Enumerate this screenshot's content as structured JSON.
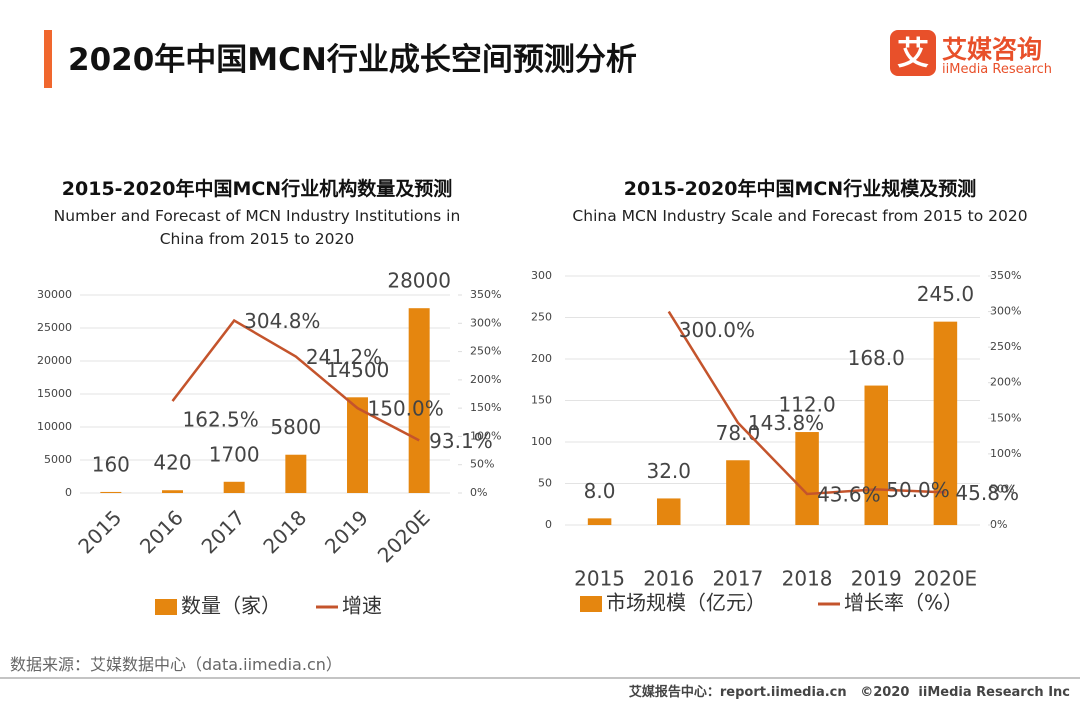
{
  "header": {
    "title": "2020年中国MCN行业成长空间预测分析",
    "logo_mark": "艾",
    "logo_cn": "艾媒咨询",
    "logo_en": "iiMedia Research"
  },
  "chart_data": [
    {
      "type": "bar",
      "title": "2015-2020年中国MCN行业机构数量及预测",
      "subtitle": "Number and Forecast of MCN Industry Institutions in China from 2015 to 2020",
      "categories": [
        "2015",
        "2016",
        "2017",
        "2018",
        "2019",
        "2020E"
      ],
      "series": [
        {
          "name": "数量（家）",
          "type": "bar",
          "color": "#e5860f",
          "values": [
            160,
            420,
            1700,
            5800,
            14500,
            28000
          ]
        },
        {
          "name": "增速",
          "type": "line",
          "axis": "y2",
          "color": "#c4542c",
          "values": [
            null,
            162.5,
            304.8,
            241.2,
            150.0,
            93.1
          ],
          "value_labels": [
            null,
            "162.5%",
            "304.8%",
            "241.2%",
            "150.0%",
            "93.1%"
          ]
        }
      ],
      "ylim": [
        0,
        30000
      ],
      "yticks": [
        0,
        5000,
        10000,
        15000,
        20000,
        25000,
        30000
      ],
      "y2lim": [
        0,
        350
      ],
      "y2ticks": [
        {
          "value": 0,
          "label": "0%"
        },
        {
          "value": 50,
          "label": "50%"
        },
        {
          "value": 100,
          "label": "100%"
        },
        {
          "value": 150,
          "label": "150%"
        },
        {
          "value": 200,
          "label": "200%"
        },
        {
          "value": 250,
          "label": "250%"
        },
        {
          "value": 300,
          "label": "300%"
        },
        {
          "value": 350,
          "label": "350%"
        }
      ],
      "grid": true
    },
    {
      "type": "bar",
      "title": "2015-2020年中国MCN行业规模及预测",
      "subtitle": "China MCN Industry Scale and Forecast from 2015 to 2020",
      "categories": [
        "2015",
        "2016",
        "2017",
        "2018",
        "2019",
        "2020E"
      ],
      "series": [
        {
          "name": "市场规模（亿元）",
          "type": "bar",
          "color": "#e5860f",
          "values": [
            8.0,
            32.0,
            78.0,
            112.0,
            168.0,
            245.0
          ],
          "value_labels": [
            "8.0",
            "32.0",
            "78.0",
            "112.0",
            "168.0",
            "245.0"
          ]
        },
        {
          "name": "增长率（%）",
          "type": "line",
          "axis": "y2",
          "color": "#c4542c",
          "values": [
            null,
            300.0,
            143.8,
            43.6,
            50.0,
            45.8
          ],
          "value_labels": [
            null,
            "300.0%",
            "143.8%",
            "43.6%",
            "50.0%",
            "45.8%"
          ]
        }
      ],
      "ylim": [
        0,
        300
      ],
      "yticks": [
        0,
        50,
        100,
        150,
        200,
        250,
        300
      ],
      "y2lim": [
        0,
        350
      ],
      "y2ticks": [
        {
          "value": 0,
          "label": "0%"
        },
        {
          "value": 50,
          "label": "50%"
        },
        {
          "value": 100,
          "label": "100%"
        },
        {
          "value": 150,
          "label": "150%"
        },
        {
          "value": 200,
          "label": "200%"
        },
        {
          "value": 250,
          "label": "250%"
        },
        {
          "value": 300,
          "label": "300%"
        },
        {
          "value": 350,
          "label": "350%"
        }
      ],
      "grid": true
    }
  ],
  "source": "数据来源：艾媒数据中心（data.iimedia.cn）",
  "footer": "艾媒报告中心：report.iimedia.cn   ©2020  iiMedia Research Inc"
}
